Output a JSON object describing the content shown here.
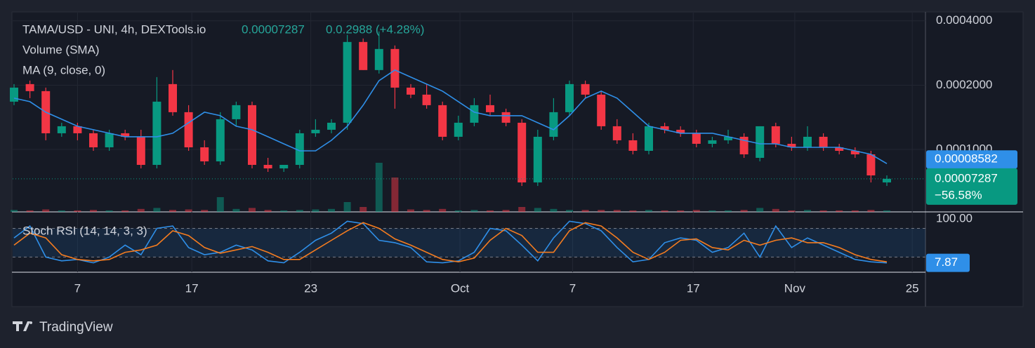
{
  "chart_data": {
    "type": "candlestick",
    "title": "TAMA/USD - UNI, 4h, DEXTools.io",
    "header_price": "0.00007287",
    "header_change": "0.0.2988 (+4.28%)",
    "volume_label": "Volume (SMA)",
    "ma_label": "MA (9, close, 0)",
    "change_label": "−56.58%",
    "brand": "TradingView",
    "log_scale": true,
    "grid": true,
    "up_color": "#089981",
    "down_color": "#f23645",
    "ylim": [
      5.1e-05,
      0.000437
    ],
    "yticks": [
      {
        "value": 0.0004,
        "label": "0.0004000"
      },
      {
        "value": 0.0002,
        "label": "0.0002000"
      },
      {
        "value": 0.0001,
        "label": "0.0001000"
      }
    ],
    "xticks": [
      {
        "value": 4,
        "label": "7"
      },
      {
        "value": 11.2,
        "label": "17"
      },
      {
        "value": 18.7,
        "label": "23"
      },
      {
        "value": 28.1,
        "label": "Oct"
      },
      {
        "value": 35.2,
        "label": "7"
      },
      {
        "value": 42.8,
        "label": "17"
      },
      {
        "value": 49.2,
        "label": "Nov"
      },
      {
        "value": 56.6,
        "label": "25"
      }
    ],
    "candles": {
      "open": [
        0.00016736,
        0.00020224,
        0.00018749,
        0.00011903,
        0.00012839,
        0.00011903,
        0.0001023,
        0.00011903,
        0.00011461,
        8.466e-05,
        0.00020224,
        0.00014939,
        0.0001023,
        8.792e-05,
        0.00013849,
        0.00016114,
        8.466e-05,
        8.151e-05,
        8.466e-05,
        0.00011903,
        0.00012362,
        0.00013335,
        0.0003185,
        0.00023531,
        0.0002953,
        0.00019472,
        0.00018052,
        0.00016114,
        0.00011461,
        0.00013335,
        0.00016114,
        0.00014939,
        0.00013335,
        7.006e-05,
        0.00011461,
        0.00014939,
        0.00020224,
        0.00018052,
        0.00012839,
        0.00011035,
        9.85e-05,
        0.00012839,
        0.00012362,
        0.00011903,
        0.00010625,
        0.00011035,
        0.00011461,
        9.132e-05,
        0.00012839,
        0.00010625,
        0.0001023,
        0.00011461,
        0.0001023,
        9.85e-05,
        9.484e-05,
        7.006e-05
      ],
      "high": [
        0.00020224,
        0.00021004,
        0.00019472,
        0.00013335,
        0.00013335,
        0.00012362,
        0.00012362,
        0.00012362,
        0.00012362,
        0.00021815,
        0.00023531,
        0.00016114,
        0.00011035,
        0.00014939,
        0.00016736,
        0.00016736,
        9.132e-05,
        8.466e-05,
        0.00012362,
        0.00013849,
        0.00013849,
        0.0003436,
        0.0003308,
        0.0003568,
        0.0003067,
        0.00020224,
        0.00020224,
        0.00016736,
        0.00014384,
        0.00017382,
        0.00018052,
        0.00015515,
        0.00013849,
        0.00012362,
        0.00017382,
        0.00021004,
        0.00021004,
        0.00018749,
        0.00013849,
        0.00011903,
        0.00013335,
        0.00013335,
        0.00012839,
        0.00012362,
        0.00011461,
        0.00012362,
        0.00011903,
        0.00012839,
        0.00013335,
        0.00011461,
        0.00012839,
        0.00011903,
        0.00010625,
        0.0001023,
        9.85e-05,
        7.557e-05
      ],
      "low": [
        0.00016114,
        0.00017382,
        0.00011035,
        0.00011461,
        0.00011035,
        9.85e-05,
        9.85e-05,
        0.00011035,
        8.151e-05,
        8.151e-05,
        0.00014384,
        9.85e-05,
        8.466e-05,
        8.466e-05,
        0.00012839,
        8.151e-05,
        7.848e-05,
        7.848e-05,
        8.151e-05,
        0.00011461,
        0.00011903,
        0.00012362,
        0.00023531,
        0.00022657,
        0.00015515,
        0.00017382,
        0.00015515,
        0.00011035,
        0.00011035,
        0.00012839,
        0.00014384,
        0.00012839,
        6.745e-05,
        6.745e-05,
        0.00011035,
        0.00014384,
        0.00017382,
        0.00012362,
        0.00010625,
        9.484e-05,
        9.484e-05,
        0.00011903,
        0.00011461,
        0.0001023,
        0.0001023,
        0.00010625,
        9.132e-05,
        8.792e-05,
        0.0001023,
        9.85e-05,
        9.85e-05,
        9.85e-05,
        9.484e-05,
        9.132e-05,
        7.006e-05,
        6.745e-05
      ],
      "close": [
        0.00019472,
        0.00018749,
        0.00011903,
        0.00012839,
        0.00011903,
        0.0001023,
        0.00011903,
        0.00011461,
        8.466e-05,
        0.00016736,
        0.00014939,
        0.0001023,
        8.792e-05,
        0.00013849,
        0.00016114,
        8.466e-05,
        8.151e-05,
        8.466e-05,
        0.00011903,
        0.00012362,
        0.00013335,
        0.0003185,
        0.00023531,
        0.0002953,
        0.00019472,
        0.00018052,
        0.00016114,
        0.00011461,
        0.00013335,
        0.00016114,
        0.00014939,
        0.00013335,
        7.006e-05,
        0.00011461,
        0.00014939,
        0.00020224,
        0.00018052,
        0.00012839,
        0.00011035,
        9.85e-05,
        0.00012839,
        0.00012362,
        0.00011903,
        0.00010625,
        0.00011035,
        0.00011461,
        9.484e-05,
        0.00012839,
        0.00010625,
        0.0001023,
        0.00011461,
        0.0001023,
        9.85e-05,
        9.484e-05,
        7.557e-05,
        7.287e-05
      ]
    },
    "volume": [
      4,
      3,
      5,
      3,
      3,
      4,
      3,
      3,
      6,
      8,
      4,
      5,
      4,
      30,
      6,
      8,
      4,
      3,
      4,
      5,
      6,
      20,
      10,
      100,
      70,
      5,
      4,
      6,
      3,
      4,
      3,
      4,
      10,
      8,
      6,
      4,
      4,
      4,
      4,
      3,
      4,
      3,
      3,
      4,
      3,
      3,
      4,
      8,
      6,
      3,
      4,
      3,
      3,
      3,
      4,
      3
    ],
    "volume_lim": [
      0,
      100
    ],
    "ma": {
      "name": "MA",
      "color": "#2f8fe8",
      "values": [
        0.00017382,
        0.00016736,
        0.00014939,
        0.00013849,
        0.00012839,
        0.00012362,
        0.00011903,
        0.00011461,
        0.00011461,
        0.00011461,
        0.00011903,
        0.00013335,
        0.00014939,
        0.00014384,
        0.00012839,
        0.00012362,
        0.00011461,
        0.00010625,
        9.85e-05,
        9.85e-05,
        0.00011035,
        0.00012839,
        0.00016114,
        0.00021004,
        0.00023531,
        0.00021815,
        0.00020224,
        0.00018749,
        0.00016736,
        0.00014939,
        0.00014384,
        0.00014384,
        0.00014384,
        0.00013335,
        0.00012362,
        0.00014384,
        0.00017382,
        0.00018749,
        0.00017382,
        0.00014939,
        0.00012839,
        0.00012362,
        0.00011903,
        0.00011903,
        0.00011903,
        0.00011461,
        0.00011035,
        0.00010625,
        0.00010625,
        0.0001023,
        0.0001023,
        0.0001023,
        0.0001023,
        9.85e-05,
        9.484e-05,
        8.582e-05
      ]
    },
    "stoch": {
      "title": "Stoch RSI (14, 14, 3, 3)",
      "ylim": [
        -11.7,
        113
      ],
      "yticks": [
        {
          "value": 100,
          "label": "100.00"
        }
      ],
      "bands": [
        20,
        80
      ],
      "series": [
        {
          "name": "K",
          "color": "#2f8fe8",
          "values": [
            60,
            85,
            20,
            12,
            15,
            8,
            20,
            45,
            25,
            80,
            85,
            40,
            25,
            30,
            45,
            35,
            12,
            8,
            30,
            55,
            70,
            95,
            90,
            55,
            50,
            40,
            10,
            8,
            12,
            30,
            80,
            75,
            45,
            12,
            60,
            95,
            90,
            75,
            40,
            10,
            15,
            50,
            60,
            55,
            30,
            40,
            70,
            20,
            85,
            40,
            60,
            45,
            30,
            15,
            10,
            7.87
          ]
        },
        {
          "name": "D",
          "color": "#f57c1f",
          "values": [
            45,
            70,
            60,
            25,
            15,
            12,
            15,
            30,
            35,
            45,
            75,
            65,
            40,
            28,
            35,
            42,
            30,
            15,
            15,
            35,
            55,
            75,
            92,
            80,
            58,
            45,
            30,
            15,
            10,
            18,
            55,
            80,
            65,
            30,
            30,
            75,
            92,
            85,
            60,
            30,
            15,
            30,
            55,
            58,
            40,
            35,
            55,
            45,
            55,
            60,
            50,
            50,
            40,
            25,
            15,
            10
          ]
        }
      ]
    }
  }
}
